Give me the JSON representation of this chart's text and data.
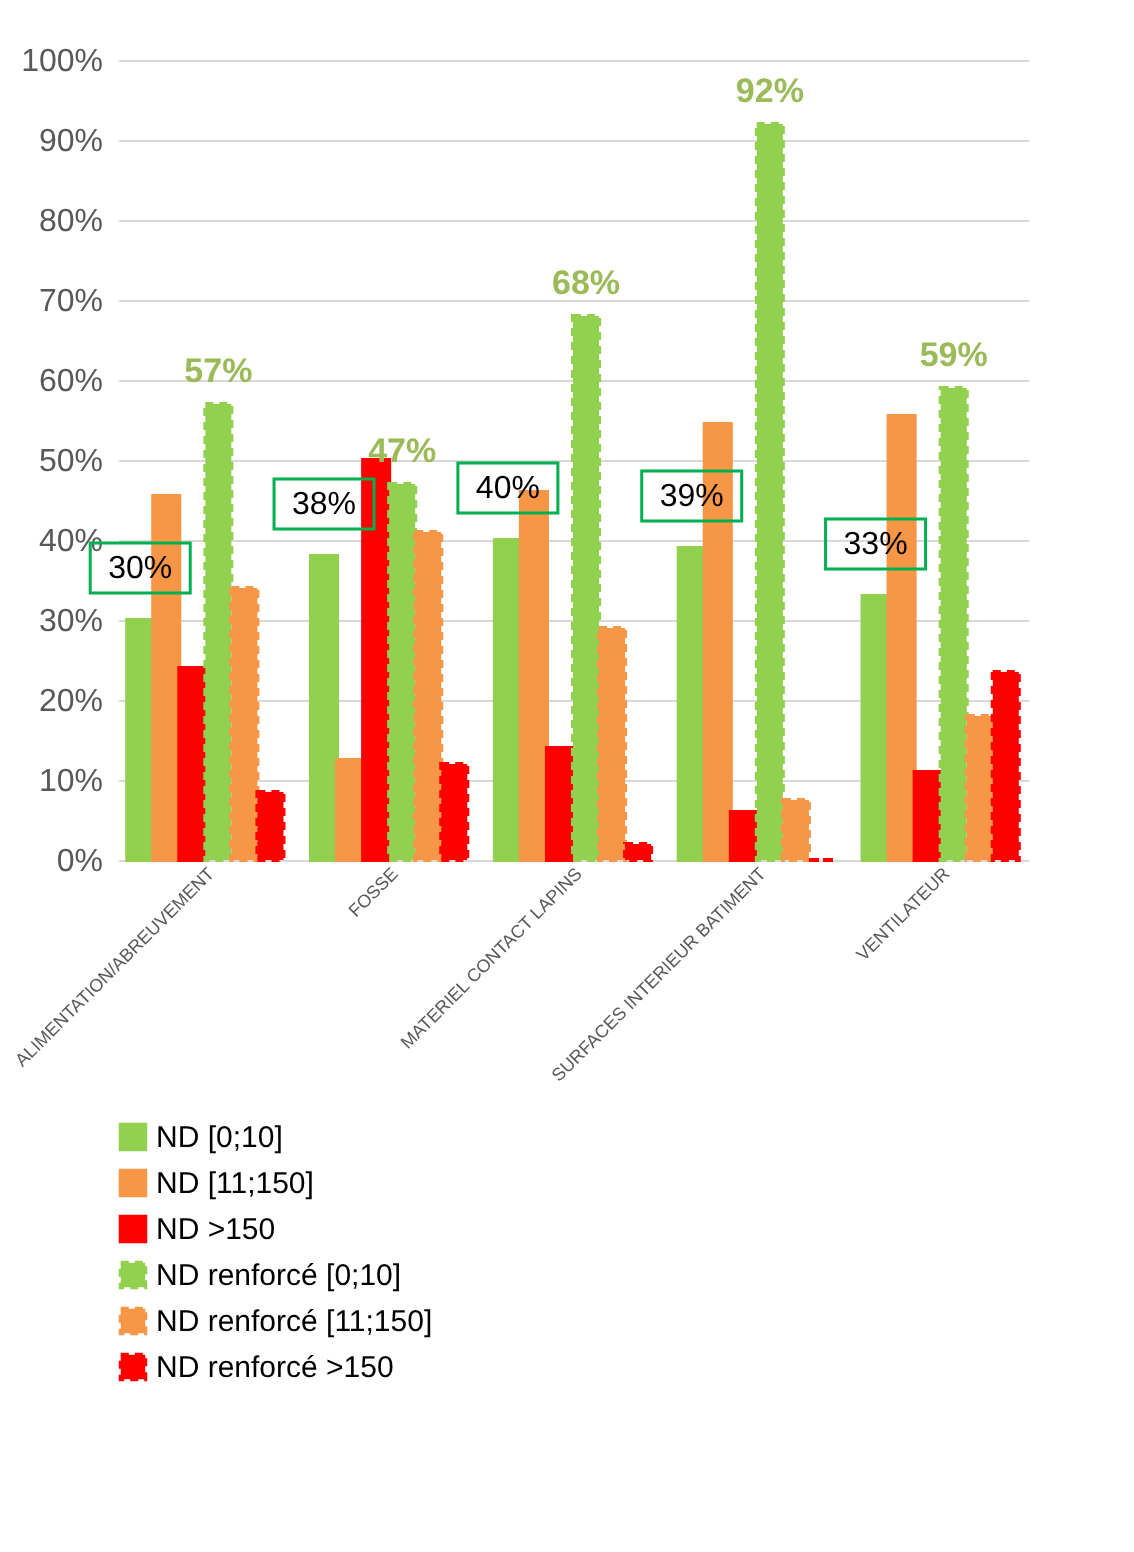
{
  "chart_data": {
    "type": "bar",
    "categories": [
      "ALIMENTATION/ABREUVEMENT",
      "FOSSE",
      "MATERIEL CONTACT LAPINS",
      "SURFACES INTERIEUR BATIMENT",
      "VENTILATEUR"
    ],
    "series": [
      {
        "name": "ND [0;10]",
        "color": "#92d050",
        "values": [
          30,
          38,
          40,
          39,
          33
        ],
        "value_labels": [
          "30%",
          "38%",
          "40%",
          "39%",
          "33%"
        ]
      },
      {
        "name": "ND [11;150]",
        "color": "#f79646",
        "values": [
          45.5,
          12.5,
          46,
          54.5,
          55.5
        ]
      },
      {
        "name": "ND >150",
        "color": "#ff0000",
        "values": [
          24,
          50,
          14,
          6,
          11
        ]
      },
      {
        "name": "ND renforcé [0;10]",
        "color": "#92d050",
        "line_style": "dashed",
        "values": [
          57,
          47,
          68,
          92,
          59
        ],
        "value_labels": [
          "57%",
          "47%",
          "68%",
          "92%",
          "59%"
        ]
      },
      {
        "name": "ND renforcé [11;150]",
        "color": "#f79646",
        "line_style": "dashed",
        "values": [
          34,
          41,
          29,
          7.5,
          18
        ]
      },
      {
        "name": "ND renforcé >150",
        "color": "#ff0000",
        "line_style": "dashed",
        "values": [
          8.5,
          12,
          2,
          0,
          23.5
        ]
      }
    ],
    "ylim": [
      0,
      100
    ],
    "yticks": [
      {
        "value": 0,
        "label": "0%"
      },
      {
        "value": 10,
        "label": "10%"
      },
      {
        "value": 20,
        "label": "20%"
      },
      {
        "value": 30,
        "label": "30%"
      },
      {
        "value": 40,
        "label": "40%"
      },
      {
        "value": 50,
        "label": "50%"
      },
      {
        "value": 60,
        "label": "60%"
      },
      {
        "value": 70,
        "label": "70%"
      },
      {
        "value": 80,
        "label": "80%"
      },
      {
        "value": 90,
        "label": "90%"
      },
      {
        "value": 100,
        "label": "100%"
      }
    ],
    "grid": "y",
    "legend": "bottom"
  }
}
